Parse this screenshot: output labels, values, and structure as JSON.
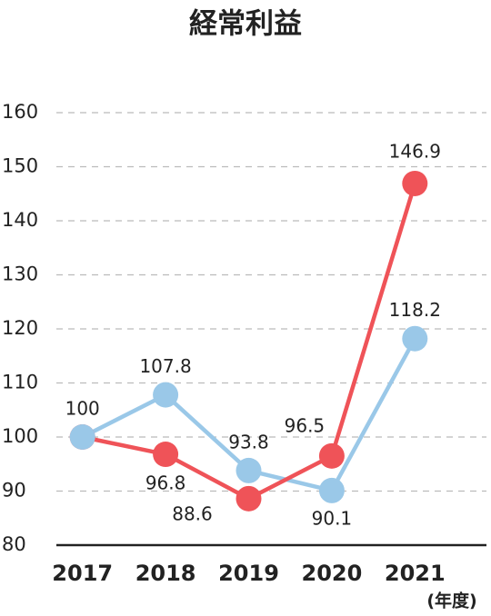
{
  "chart_data": {
    "type": "line",
    "title": "経常利益",
    "xlabel": "(年度)",
    "categories": [
      "2017",
      "2018",
      "2019",
      "2020",
      "2021"
    ],
    "series": [
      {
        "color": "#9ac8e8",
        "values": [
          100,
          107.8,
          93.8,
          90.1,
          118.2
        ],
        "value_labels": [
          "100",
          "107.8",
          "93.8",
          "90.1",
          "118.2"
        ]
      },
      {
        "color": "#ef5358",
        "values": [
          100,
          96.8,
          88.6,
          96.5,
          146.9
        ],
        "value_labels": [
          null,
          "96.8",
          "88.6",
          "96.5",
          "146.9"
        ]
      }
    ],
    "ylim": [
      80,
      160
    ],
    "yticks": [
      80,
      90,
      100,
      110,
      120,
      130,
      140,
      150,
      160
    ],
    "grid": true
  }
}
